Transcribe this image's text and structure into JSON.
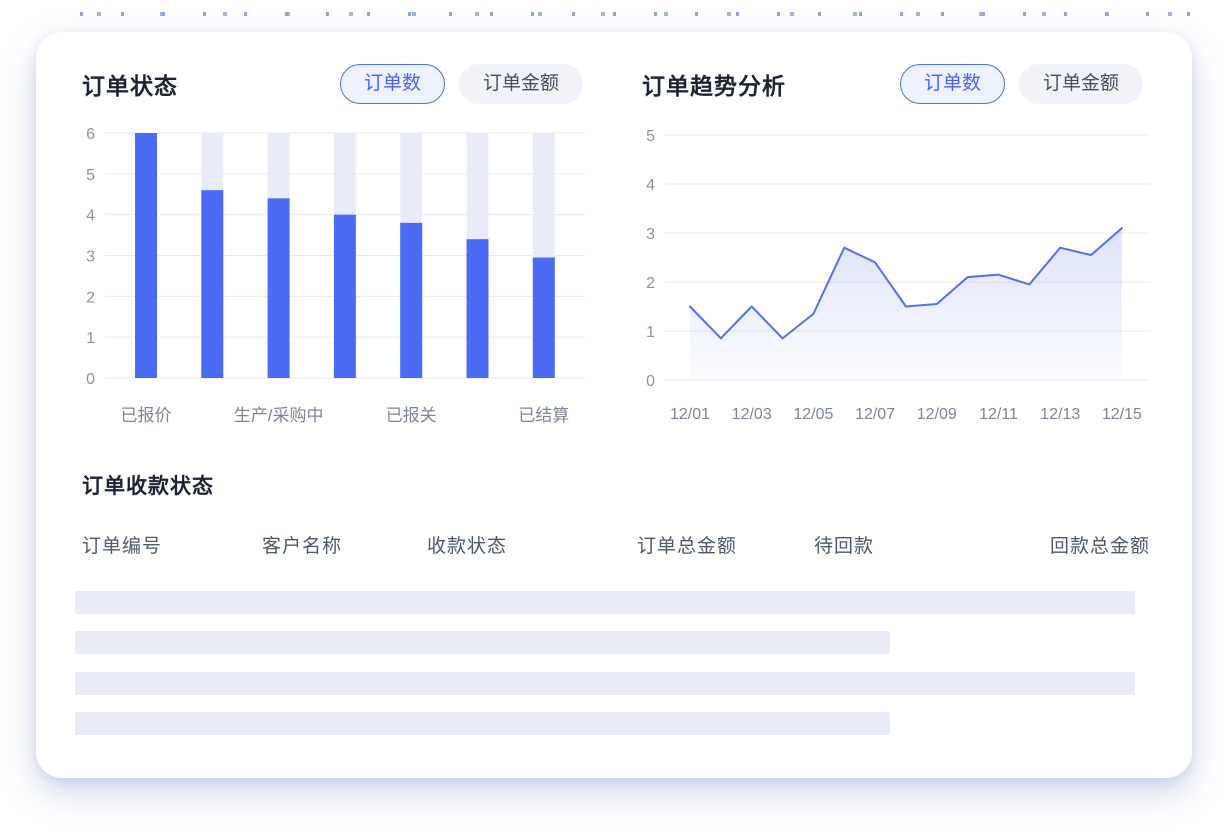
{
  "colors": {
    "accent_blue": "#4c6bf5",
    "line_blue": "#5570e8",
    "track_lavender": "#e9ecf8",
    "skeleton_lavender": "#e9ebf6",
    "gridline": "#e9eaf1",
    "tick_text": "#8a93a4",
    "axis_label_text": "#7d8695",
    "title_text": "#1d2433",
    "table_header_text": "#4e5969",
    "pill_active_border": "#4c6ef5",
    "pill_active_bg": "#eef1fe",
    "pill_inactive_bg": "#f2f3f8"
  },
  "order_status_panel": {
    "title": "订单状态",
    "toggles": [
      {
        "label": "订单数",
        "active": true
      },
      {
        "label": "订单金额",
        "active": false
      }
    ]
  },
  "order_trend_panel": {
    "title": "订单趋势分析",
    "toggles": [
      {
        "label": "订单数",
        "active": true
      },
      {
        "label": "订单金额",
        "active": false
      }
    ]
  },
  "receivables_section": {
    "title": "订单收款状态",
    "columns": [
      "订单编号",
      "客户名称",
      "收款状态",
      "订单总金额",
      "待回款",
      "回款总金额"
    ],
    "skeleton_rows": [
      "full",
      "short",
      "full",
      "short"
    ]
  },
  "chart_data": [
    {
      "type": "bar",
      "title": "订单状态",
      "categories": [
        "已报价",
        "",
        "生产/采购中",
        "",
        "已报关",
        "",
        "已结算"
      ],
      "values": [
        6,
        4.6,
        4.4,
        4,
        3.8,
        3.4,
        2.95
      ],
      "xlabel": "",
      "ylabel": "",
      "ylim": [
        0,
        6
      ],
      "yticks": [
        0,
        1,
        2,
        3,
        4,
        5,
        6
      ],
      "grid": true,
      "legend": "none",
      "bar_color": "#4c6bf5",
      "track_color": "#e9ecf8"
    },
    {
      "type": "line",
      "title": "订单趋势分析",
      "x": [
        "12/01",
        "12/02",
        "12/03",
        "12/04",
        "12/05",
        "12/06",
        "12/07",
        "12/08",
        "12/09",
        "12/10",
        "12/11",
        "12/12",
        "12/13",
        "12/14",
        "12/15"
      ],
      "values": [
        1.5,
        0.85,
        1.5,
        0.85,
        1.35,
        2.7,
        2.4,
        1.5,
        1.55,
        2.1,
        2.15,
        1.95,
        2.7,
        2.55,
        3.1
      ],
      "shown_x_tick_labels": [
        "12/01",
        "12/03",
        "12/05",
        "12/07",
        "12/09",
        "12/11",
        "12/13",
        "12/15"
      ],
      "xlabel": "",
      "ylabel": "",
      "ylim": [
        0,
        5
      ],
      "yticks": [
        0,
        1,
        2,
        3,
        4,
        5
      ],
      "grid": true,
      "legend": "none",
      "area_fill": true,
      "line_color": "#5570e8"
    }
  ]
}
